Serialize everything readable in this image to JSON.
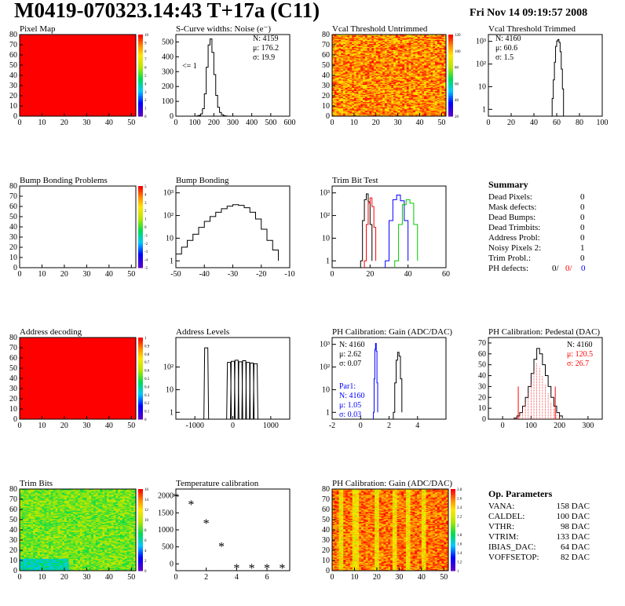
{
  "title": "M0419-070323.14:43 T+17a (C11)",
  "date": "Fri Nov 14 09:19:57 2008",
  "panels": {
    "pixel_map": {
      "title": "Pixel Map",
      "colorbar": [
        "10",
        "9",
        "8",
        "7",
        "6",
        "5",
        "4",
        "3",
        "2",
        "1",
        "0"
      ]
    },
    "scurve": {
      "title": "S-Curve widths: Noise (e⁻)",
      "annotation": "<= 1",
      "stats": [
        "N: 4159",
        "μ: 176.2",
        "σ: 19.9"
      ]
    },
    "vcal_untrimmed": {
      "title": "Vcal Threshold Untrimmed",
      "colorbar": [
        "120",
        "100",
        "80",
        "60",
        "40",
        "20"
      ]
    },
    "vcal_trimmed": {
      "title": "Vcal Threshold Trimmed",
      "stats": [
        "N: 4160",
        "μ: 60.6",
        "σ: 1.5"
      ]
    },
    "bump_problems": {
      "title": "Bump Bonding Problems",
      "colorbar": [
        "5",
        "4",
        "3",
        "2",
        "1",
        "0",
        "-1",
        "-2",
        "-3",
        "-4",
        "-5"
      ]
    },
    "bump_bonding": {
      "title": "Bump Bonding"
    },
    "trim_bit_test": {
      "title": "Trim Bit Test"
    },
    "address_decoding": {
      "title": "Address decoding",
      "colorbar": [
        "1",
        "0.9",
        "0.8",
        "0.7",
        "0.6",
        "0.5",
        "0.4",
        "0.3",
        "0.2",
        "0.1",
        "0"
      ]
    },
    "address_levels": {
      "title": "Address Levels"
    },
    "ph_gain": {
      "title": "PH Calibration: Gain (ADC/DAC)",
      "stats": [
        "N: 4160",
        "μ: 2.62",
        "σ: 0.07"
      ],
      "stats_par1": [
        "Par1:",
        "N: 4160",
        "μ: 1.05",
        "σ: 0.03"
      ]
    },
    "ph_pedestal": {
      "title": "PH Calibration: Pedestal (DAC)",
      "stats": [
        "N: 4160",
        "μ: 120.5",
        "σ: 26.7"
      ]
    },
    "trim_bits": {
      "title": "Trim Bits",
      "colorbar": [
        "16",
        "14",
        "12",
        "10",
        "8",
        "6",
        "4",
        "2",
        "0"
      ]
    },
    "temperature": {
      "title": "Temperature calibration"
    },
    "ph_gain_map": {
      "title": "PH Calibration: Gain (ADC/DAC)",
      "colorbar": [
        "2.8",
        "2.6",
        "2.4",
        "2.2",
        "2",
        "1.8",
        "1.6",
        "1.4",
        "1.2",
        "1"
      ]
    }
  },
  "summary": {
    "title": "Summary",
    "rows": [
      {
        "label": "Dead Pixels:",
        "value": "0"
      },
      {
        "label": "Mask defects:",
        "value": "0"
      },
      {
        "label": "Dead Bumps:",
        "value": "0"
      },
      {
        "label": "Dead Trimbits:",
        "value": "0"
      },
      {
        "label": "Address Probl:",
        "value": "0"
      },
      {
        "label": "Noisy Pixels 2:",
        "value": "1"
      },
      {
        "label": "Trim Probl.:",
        "value": "0"
      }
    ],
    "ph_defects_label": "PH defects:",
    "ph_defects": [
      "0/",
      "0/",
      "0"
    ],
    "ph_colors": [
      "#000000",
      "#ff0000",
      "#0000ff"
    ]
  },
  "op_parameters": {
    "title": "Op. Parameters",
    "rows": [
      {
        "label": "VANA:",
        "value": "158 DAC"
      },
      {
        "label": "CALDEL:",
        "value": "100 DAC"
      },
      {
        "label": "VTHR:",
        "value": "98 DAC"
      },
      {
        "label": "VTRIM:",
        "value": "133 DAC"
      },
      {
        "label": "IBIAS_DAC:",
        "value": "64 DAC"
      },
      {
        "label": "VOFFSETOP:",
        "value": "82 DAC"
      }
    ]
  },
  "chart_data": [
    {
      "id": "pixel_map",
      "type": "heatmap",
      "title": "Pixel Map",
      "xlim": [
        0,
        52
      ],
      "ylim": [
        0,
        80
      ],
      "x_ticks": [
        0,
        10,
        20,
        30,
        40,
        50
      ],
      "y_ticks": [
        0,
        10,
        20,
        30,
        40,
        50,
        60,
        70,
        80
      ],
      "zlim": [
        0,
        10
      ],
      "uniform_value": 10
    },
    {
      "id": "scurve",
      "type": "line",
      "title": "S-Curve widths: Noise (e⁻)",
      "xlim": [
        0,
        600
      ],
      "ylim": [
        0,
        550
      ],
      "x_ticks": [
        0,
        100,
        200,
        300,
        400,
        500,
        600
      ],
      "y_ticks": [
        0,
        100,
        200,
        300,
        400,
        500
      ],
      "x": [
        100,
        110,
        120,
        130,
        140,
        150,
        160,
        170,
        180,
        190,
        200,
        210,
        220,
        230,
        240,
        250,
        260,
        270
      ],
      "y": [
        0,
        2,
        5,
        15,
        50,
        150,
        330,
        480,
        520,
        430,
        280,
        140,
        60,
        25,
        10,
        4,
        1,
        0
      ]
    },
    {
      "id": "vcal_untrimmed",
      "type": "heatmap",
      "title": "Vcal Threshold Untrimmed",
      "xlim": [
        0,
        52
      ],
      "ylim": [
        0,
        80
      ],
      "x_ticks": [
        0,
        10,
        20,
        30,
        40,
        50
      ],
      "y_ticks": [
        0,
        10,
        20,
        30,
        40,
        50,
        60,
        70,
        80
      ],
      "zlim": [
        0,
        130
      ]
    },
    {
      "id": "vcal_trimmed",
      "type": "line",
      "title": "Vcal Threshold Trimmed",
      "y_scale": "log",
      "xlim": [
        0,
        100
      ],
      "ylim": [
        0.5,
        2000
      ],
      "x_ticks": [
        0,
        20,
        40,
        60,
        80,
        100
      ],
      "y_tick_labels": [
        "1",
        "10",
        "10²",
        "10³"
      ],
      "x": [
        55,
        56,
        57,
        58,
        59,
        60,
        61,
        62,
        63,
        64,
        65,
        66
      ],
      "y": [
        0.5,
        3,
        20,
        120,
        600,
        1050,
        1200,
        900,
        350,
        60,
        8,
        0.5
      ]
    },
    {
      "id": "bump_problems",
      "type": "heatmap",
      "title": "Bump Bonding Problems",
      "xlim": [
        0,
        52
      ],
      "ylim": [
        0,
        80
      ],
      "x_ticks": [
        0,
        10,
        20,
        30,
        40,
        50
      ],
      "y_ticks": [
        0,
        10,
        20,
        30,
        40,
        50,
        60,
        70,
        80
      ],
      "zlim": [
        -5,
        5
      ],
      "uniform_value": 0
    },
    {
      "id": "bump_bonding",
      "type": "line",
      "title": "Bump Bonding",
      "y_scale": "log",
      "xlim": [
        -50,
        -10
      ],
      "ylim": [
        0.5,
        2000
      ],
      "x_ticks": [
        -50,
        -40,
        -30,
        -20,
        -10
      ],
      "y_tick_labels": [
        "1",
        "10",
        "10²",
        "10³"
      ],
      "x": [
        -50,
        -48,
        -46,
        -44,
        -42,
        -40,
        -38,
        -36,
        -34,
        -32,
        -30,
        -28,
        -26,
        -24,
        -22,
        -20,
        -18,
        -16,
        -14
      ],
      "y": [
        2,
        4,
        8,
        15,
        30,
        55,
        90,
        140,
        200,
        260,
        300,
        280,
        220,
        140,
        70,
        25,
        8,
        3,
        1
      ]
    },
    {
      "id": "trim_bit_test",
      "type": "line",
      "title": "Trim Bit Test",
      "y_scale": "log",
      "xlim": [
        0,
        60
      ],
      "ylim": [
        0.5,
        2000
      ],
      "x_ticks": [
        0,
        20,
        40,
        60
      ],
      "y_tick_labels": [
        "1",
        "10",
        "10²",
        "10³"
      ],
      "series": [
        {
          "color": "#000000",
          "x": [
            15,
            16,
            17,
            18,
            19,
            20,
            21
          ],
          "y": [
            1,
            60,
            500,
            900,
            400,
            40,
            1
          ]
        },
        {
          "color": "#ff0000",
          "x": [
            17,
            18,
            19,
            20,
            21,
            22,
            23
          ],
          "y": [
            1,
            40,
            350,
            600,
            250,
            30,
            1
          ]
        },
        {
          "color": "#0000ff",
          "x": [
            28,
            30,
            32,
            34,
            36,
            38,
            40
          ],
          "y": [
            1,
            60,
            500,
            800,
            450,
            60,
            1
          ]
        },
        {
          "color": "#00cc00",
          "x": [
            33,
            35,
            37,
            39,
            41,
            43,
            45
          ],
          "y": [
            1,
            40,
            300,
            500,
            350,
            40,
            1
          ]
        }
      ]
    },
    {
      "id": "address_decoding",
      "type": "heatmap",
      "title": "Address decoding",
      "xlim": [
        0,
        52
      ],
      "ylim": [
        0,
        80
      ],
      "x_ticks": [
        0,
        10,
        20,
        30,
        40,
        50
      ],
      "y_ticks": [
        0,
        10,
        20,
        30,
        40,
        50,
        60,
        70,
        80
      ],
      "zlim": [
        0,
        1
      ],
      "uniform_value": 1
    },
    {
      "id": "address_levels",
      "type": "line",
      "title": "Address Levels",
      "y_scale": "log",
      "xlim": [
        -1500,
        1500
      ],
      "ylim": [
        0.5,
        2000
      ],
      "x_ticks": [
        -1000,
        0,
        1000
      ],
      "y_tick_labels": [
        "1",
        "10",
        "10²"
      ],
      "peaks": [
        -700,
        -100,
        0,
        100,
        200,
        300,
        400,
        500,
        600
      ],
      "peak_heights": [
        700,
        160,
        180,
        200,
        170,
        190,
        160,
        150,
        140
      ]
    },
    {
      "id": "ph_gain",
      "type": "line",
      "title": "PH Calibration: Gain (ADC/DAC)",
      "y_scale": "log",
      "xlim": [
        -2,
        6
      ],
      "ylim": [
        0.5,
        2000
      ],
      "x_ticks": [
        -2,
        0,
        2,
        4
      ],
      "y_tick_labels": [
        "1",
        "10",
        "10²",
        "10³"
      ],
      "series": [
        {
          "color": "#000000",
          "x": [
            2.3,
            2.4,
            2.5,
            2.6,
            2.7,
            2.8,
            2.9
          ],
          "y": [
            1,
            20,
            200,
            450,
            300,
            30,
            1
          ]
        },
        {
          "color": "#0000ff",
          "x": [
            0.9,
            0.95,
            1.0,
            1.05,
            1.1,
            1.15,
            1.2
          ],
          "y": [
            1,
            30,
            600,
            1100,
            500,
            20,
            1
          ]
        }
      ]
    },
    {
      "id": "ph_pedestal",
      "type": "line",
      "title": "PH Calibration: Pedestal (DAC)",
      "xlim": [
        -50,
        350
      ],
      "ylim": [
        0,
        75
      ],
      "x_ticks": [
        0,
        100,
        200,
        300
      ],
      "y_ticks": [
        0,
        10,
        20,
        30,
        40,
        50,
        60,
        70
      ],
      "x": [
        40,
        50,
        60,
        70,
        80,
        90,
        100,
        110,
        120,
        130,
        140,
        150,
        160,
        170,
        180,
        190,
        200,
        210
      ],
      "y": [
        1,
        3,
        6,
        12,
        20,
        30,
        42,
        55,
        65,
        60,
        50,
        40,
        30,
        20,
        12,
        6,
        3,
        1
      ]
    },
    {
      "id": "trim_bits",
      "type": "heatmap",
      "title": "Trim Bits",
      "xlim": [
        0,
        52
      ],
      "ylim": [
        0,
        80
      ],
      "x_ticks": [
        0,
        10,
        20,
        30,
        40,
        50
      ],
      "y_ticks": [
        0,
        10,
        20,
        30,
        40,
        50,
        60,
        70,
        80
      ],
      "zlim": [
        0,
        16
      ]
    },
    {
      "id": "temperature",
      "type": "scatter",
      "title": "Temperature calibration",
      "xlim": [
        0,
        7.5
      ],
      "ylim": [
        -200,
        2200
      ],
      "x_ticks": [
        0,
        2,
        4,
        6
      ],
      "y_ticks": [
        0,
        500,
        1000,
        1500,
        2000
      ],
      "x": [
        0,
        1,
        2,
        3,
        4,
        5,
        6,
        7
      ],
      "y": [
        2000,
        1780,
        1230,
        550,
        -80,
        -80,
        -80,
        -80
      ]
    },
    {
      "id": "ph_gain_map",
      "type": "heatmap",
      "title": "PH Calibration: Gain (ADC/DAC)",
      "xlim": [
        0,
        52
      ],
      "ylim": [
        0,
        80
      ],
      "x_ticks": [
        0,
        10,
        20,
        30,
        40,
        50
      ],
      "y_ticks": [
        0,
        10,
        20,
        30,
        40,
        50,
        60,
        70,
        80
      ],
      "zlim": [
        1,
        2.9
      ]
    }
  ]
}
